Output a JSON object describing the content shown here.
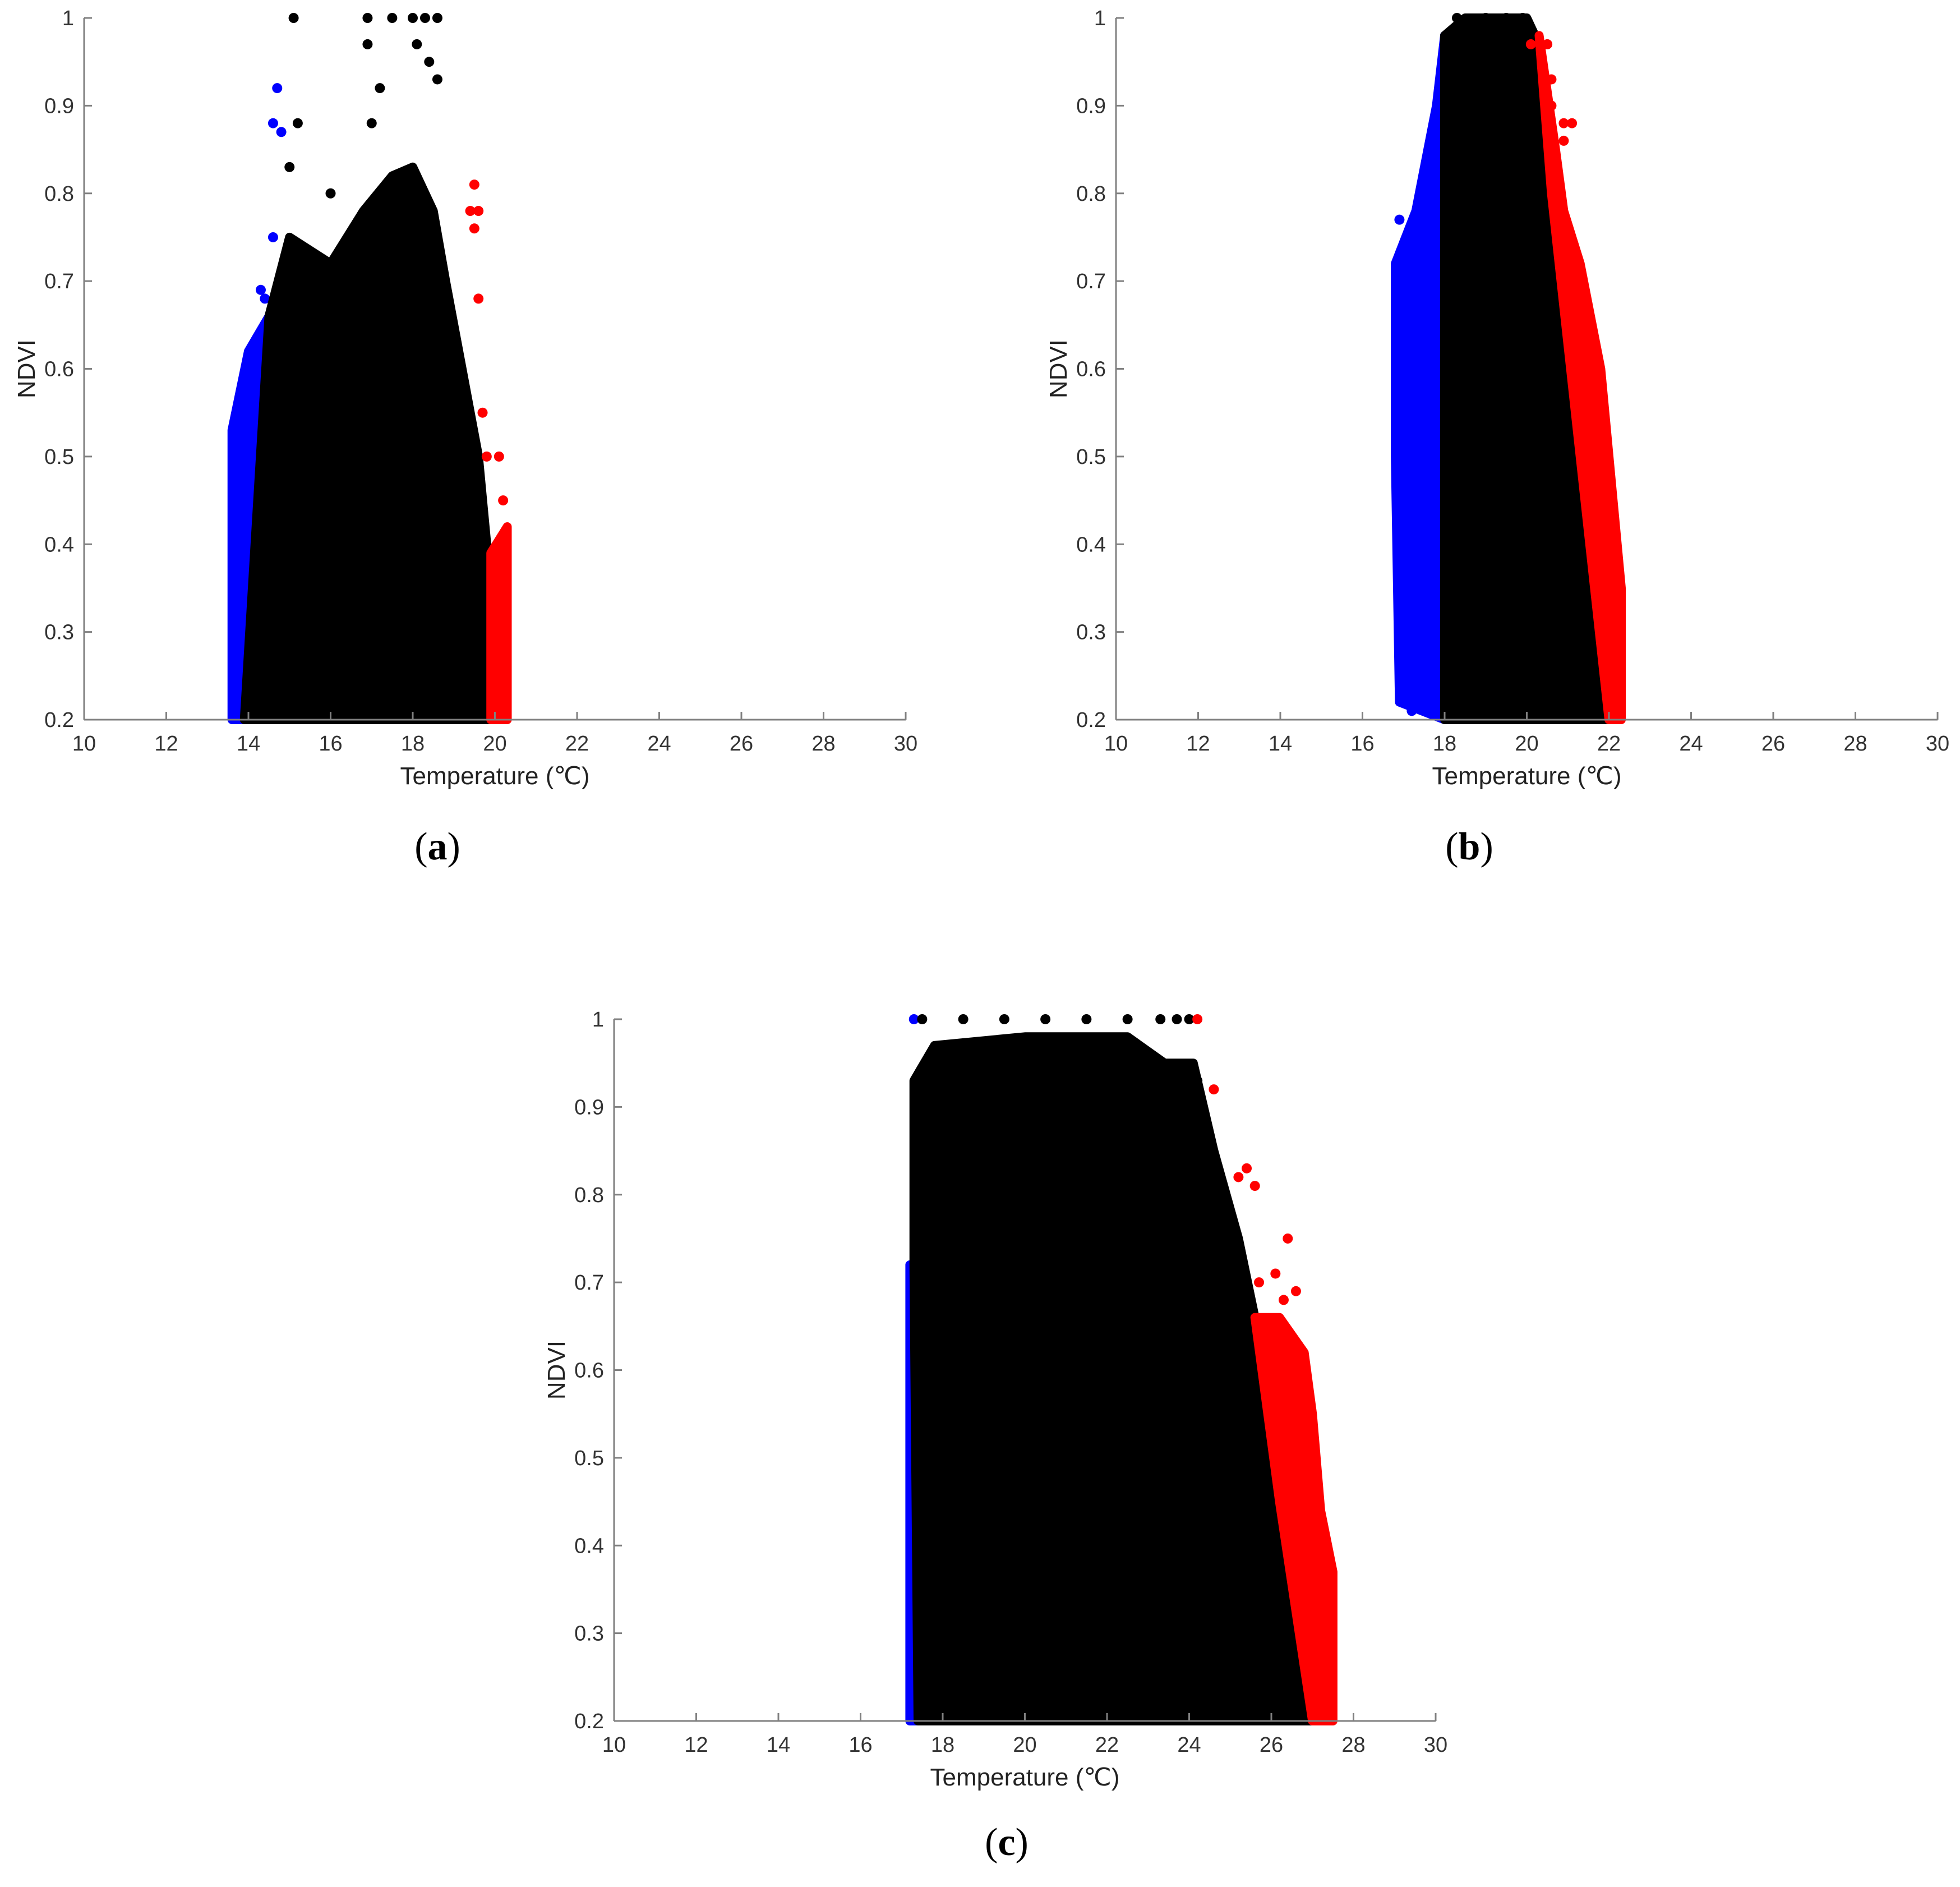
{
  "colors": {
    "cold": "#0000ff",
    "middle": "#000000",
    "hot": "#ff0000",
    "axis": "#808080",
    "tick_text": "#333333"
  },
  "chart_data": [
    {
      "type": "scatter",
      "panel_label": "a",
      "xlabel": "Temperature (℃)",
      "ylabel": "NDVI",
      "xlim": [
        10,
        30
      ],
      "ylim": [
        0.2,
        1
      ],
      "xticks": [
        "10",
        "12",
        "14",
        "16",
        "18",
        "20",
        "22",
        "24",
        "26",
        "28",
        "30"
      ],
      "yticks": [
        "0.2",
        "0.3",
        "0.4",
        "0.5",
        "0.6",
        "0.7",
        "0.8",
        "0.9",
        "1"
      ],
      "grid": false,
      "series": [
        {
          "color_key": "cold",
          "left_edge": [
            [
              13.6,
              0.2
            ],
            [
              13.6,
              0.53
            ],
            [
              14.0,
              0.62
            ],
            [
              14.5,
              0.66
            ]
          ],
          "right_edge": [
            [
              13.9,
              0.2
            ],
            [
              14.5,
              0.66
            ]
          ],
          "outliers": [
            [
              14.6,
              0.88
            ],
            [
              14.7,
              0.92
            ],
            [
              14.8,
              0.87
            ],
            [
              14.6,
              0.75
            ],
            [
              14.3,
              0.69
            ],
            [
              14.4,
              0.68
            ]
          ]
        },
        {
          "color_key": "middle",
          "left_edge": [
            [
              13.9,
              0.2
            ],
            [
              14.5,
              0.66
            ],
            [
              15.0,
              0.75
            ],
            [
              16.0,
              0.72
            ],
            [
              16.8,
              0.78
            ],
            [
              17.5,
              0.82
            ],
            [
              18.0,
              0.83
            ],
            [
              18.5,
              0.78
            ]
          ],
          "right_edge": [
            [
              20.0,
              0.2
            ],
            [
              19.8,
              0.4
            ],
            [
              19.6,
              0.5
            ],
            [
              19.2,
              0.6
            ],
            [
              18.8,
              0.7
            ],
            [
              18.5,
              0.78
            ]
          ],
          "outliers": [
            [
              15.1,
              1.0
            ],
            [
              16.9,
              1.0
            ],
            [
              17.5,
              1.0
            ],
            [
              18.0,
              1.0
            ],
            [
              18.3,
              1.0
            ],
            [
              18.6,
              1.0
            ],
            [
              18.1,
              0.97
            ],
            [
              18.4,
              0.95
            ],
            [
              18.6,
              0.93
            ],
            [
              16.9,
              0.97
            ],
            [
              17.2,
              0.92
            ],
            [
              15.2,
              0.88
            ],
            [
              15.0,
              0.83
            ],
            [
              16.0,
              0.8
            ],
            [
              17.0,
              0.88
            ]
          ]
        },
        {
          "color_key": "hot",
          "left_edge": [
            [
              19.9,
              0.2
            ],
            [
              19.9,
              0.39
            ]
          ],
          "right_edge": [
            [
              20.3,
              0.2
            ],
            [
              20.3,
              0.42
            ]
          ],
          "outliers": [
            [
              19.5,
              0.81
            ],
            [
              19.4,
              0.78
            ],
            [
              19.6,
              0.78
            ],
            [
              19.5,
              0.76
            ],
            [
              19.6,
              0.68
            ],
            [
              19.7,
              0.55
            ],
            [
              19.8,
              0.5
            ],
            [
              20.1,
              0.5
            ],
            [
              20.2,
              0.45
            ]
          ]
        }
      ]
    },
    {
      "type": "scatter",
      "panel_label": "b",
      "xlabel": "Temperature (℃)",
      "ylabel": "NDVI",
      "xlim": [
        10,
        30
      ],
      "ylim": [
        0.2,
        1
      ],
      "xticks": [
        "10",
        "12",
        "14",
        "16",
        "18",
        "20",
        "22",
        "24",
        "26",
        "28",
        "30"
      ],
      "yticks": [
        "0.2",
        "0.3",
        "0.4",
        "0.5",
        "0.6",
        "0.7",
        "0.8",
        "0.9",
        "1"
      ],
      "grid": false,
      "series": [
        {
          "color_key": "cold",
          "left_edge": [
            [
              16.9,
              0.22
            ],
            [
              16.8,
              0.5
            ],
            [
              16.8,
              0.72
            ],
            [
              17.3,
              0.78
            ],
            [
              17.8,
              0.9
            ],
            [
              18.0,
              0.98
            ]
          ],
          "right_edge": [
            [
              18.0,
              0.2
            ],
            [
              18.0,
              0.98
            ]
          ],
          "outliers": [
            [
              17.0,
              0.23
            ],
            [
              17.2,
              0.21
            ],
            [
              16.9,
              0.77
            ],
            [
              17.0,
              0.25
            ]
          ]
        },
        {
          "color_key": "middle",
          "left_edge": [
            [
              18.0,
              0.2
            ],
            [
              18.0,
              0.98
            ],
            [
              18.5,
              1.0
            ]
          ],
          "right_edge": [
            [
              22.0,
              0.2
            ],
            [
              21.3,
              0.5
            ],
            [
              20.6,
              0.8
            ],
            [
              20.2,
              0.98
            ],
            [
              20.0,
              1.0
            ]
          ],
          "outliers": [
            [
              18.3,
              1.0
            ],
            [
              19.0,
              1.0
            ],
            [
              19.5,
              1.0
            ],
            [
              19.9,
              1.0
            ]
          ]
        },
        {
          "color_key": "hot",
          "left_edge": [
            [
              22.0,
              0.2
            ],
            [
              21.3,
              0.5
            ],
            [
              20.6,
              0.8
            ],
            [
              20.3,
              0.98
            ]
          ],
          "right_edge": [
            [
              22.3,
              0.2
            ],
            [
              22.3,
              0.35
            ],
            [
              21.8,
              0.6
            ],
            [
              21.3,
              0.72
            ],
            [
              20.9,
              0.78
            ],
            [
              20.7,
              0.85
            ]
          ],
          "outliers": [
            [
              20.1,
              0.97
            ],
            [
              20.5,
              0.97
            ],
            [
              20.6,
              0.93
            ],
            [
              20.6,
              0.9
            ],
            [
              20.9,
              0.88
            ],
            [
              21.1,
              0.88
            ],
            [
              20.9,
              0.86
            ]
          ]
        }
      ]
    },
    {
      "type": "scatter",
      "panel_label": "c",
      "xlabel": "Temperature (℃)",
      "ylabel": "NDVI",
      "xlim": [
        10,
        30
      ],
      "ylim": [
        0.2,
        1
      ],
      "xticks": [
        "10",
        "12",
        "14",
        "16",
        "18",
        "20",
        "22",
        "24",
        "26",
        "28",
        "30"
      ],
      "yticks": [
        "0.2",
        "0.3",
        "0.4",
        "0.5",
        "0.6",
        "0.7",
        "0.8",
        "0.9",
        "1"
      ],
      "grid": false,
      "series": [
        {
          "color_key": "cold",
          "left_edge": [
            [
              17.2,
              0.2
            ],
            [
              17.2,
              0.72
            ]
          ],
          "right_edge": [
            [
              17.5,
              0.2
            ],
            [
              17.5,
              0.72
            ]
          ],
          "outliers": [
            [
              17.3,
              1.0
            ]
          ]
        },
        {
          "color_key": "middle",
          "left_edge": [
            [
              17.4,
              0.2
            ],
            [
              17.3,
              0.72
            ],
            [
              17.3,
              0.93
            ],
            [
              17.8,
              0.97
            ],
            [
              20.0,
              0.98
            ],
            [
              22.5,
              0.98
            ],
            [
              23.4,
              0.95
            ],
            [
              24.1,
              0.95
            ]
          ],
          "right_edge": [
            [
              27.0,
              0.2
            ],
            [
              26.2,
              0.45
            ],
            [
              25.6,
              0.66
            ],
            [
              25.2,
              0.75
            ],
            [
              24.6,
              0.85
            ],
            [
              24.1,
              0.95
            ]
          ],
          "outliers": [
            [
              17.5,
              1.0
            ],
            [
              18.5,
              1.0
            ],
            [
              19.5,
              1.0
            ],
            [
              20.5,
              1.0
            ],
            [
              21.5,
              1.0
            ],
            [
              22.5,
              1.0
            ],
            [
              23.3,
              1.0
            ],
            [
              23.7,
              1.0
            ],
            [
              24.0,
              1.0
            ],
            [
              24.2,
              0.93
            ],
            [
              24.3,
              0.9
            ]
          ]
        },
        {
          "color_key": "hot",
          "left_edge": [
            [
              27.0,
              0.2
            ],
            [
              26.2,
              0.45
            ],
            [
              25.6,
              0.66
            ]
          ],
          "right_edge": [
            [
              27.5,
              0.2
            ],
            [
              27.5,
              0.37
            ],
            [
              27.2,
              0.44
            ],
            [
              27.0,
              0.55
            ],
            [
              26.8,
              0.62
            ],
            [
              26.2,
              0.66
            ]
          ],
          "outliers": [
            [
              24.2,
              1.0
            ],
            [
              24.6,
              0.92
            ],
            [
              25.4,
              0.83
            ],
            [
              25.6,
              0.81
            ],
            [
              25.2,
              0.82
            ],
            [
              26.4,
              0.75
            ],
            [
              26.1,
              0.71
            ],
            [
              26.6,
              0.69
            ],
            [
              25.7,
              0.7
            ],
            [
              26.3,
              0.68
            ]
          ]
        }
      ]
    }
  ]
}
